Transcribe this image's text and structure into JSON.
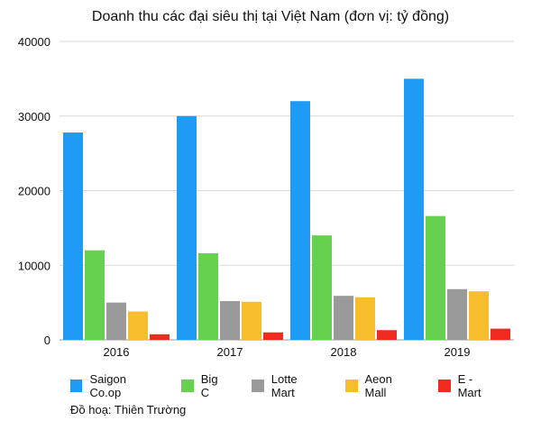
{
  "chart_data": {
    "type": "bar",
    "title": "Doanh thu các đại siêu thị tại Việt Nam (đơn vị: tỷ đồng)",
    "categories": [
      "2016",
      "2017",
      "2018",
      "2019"
    ],
    "ylim": [
      0,
      40000
    ],
    "yticks": [
      0,
      10000,
      20000,
      30000,
      40000
    ],
    "grid": true,
    "legend_position": "bottom",
    "series": [
      {
        "name": "Saigon Co.op",
        "color": "#1f9bf5",
        "values": [
          27800,
          30000,
          32000,
          35000
        ]
      },
      {
        "name": "Big C",
        "color": "#66d14f",
        "values": [
          12000,
          11600,
          14000,
          16600
        ]
      },
      {
        "name": "Lotte Mart",
        "color": "#9a9a9a",
        "values": [
          5000,
          5200,
          5900,
          6800
        ]
      },
      {
        "name": "Aeon Mall",
        "color": "#f7bd2c",
        "values": [
          3800,
          5100,
          5700,
          6500
        ]
      },
      {
        "name": "E - Mart",
        "color": "#f02a1e",
        "values": [
          750,
          1000,
          1300,
          1500
        ]
      }
    ]
  },
  "credit": "Đồ hoạ: Thiên Trường"
}
